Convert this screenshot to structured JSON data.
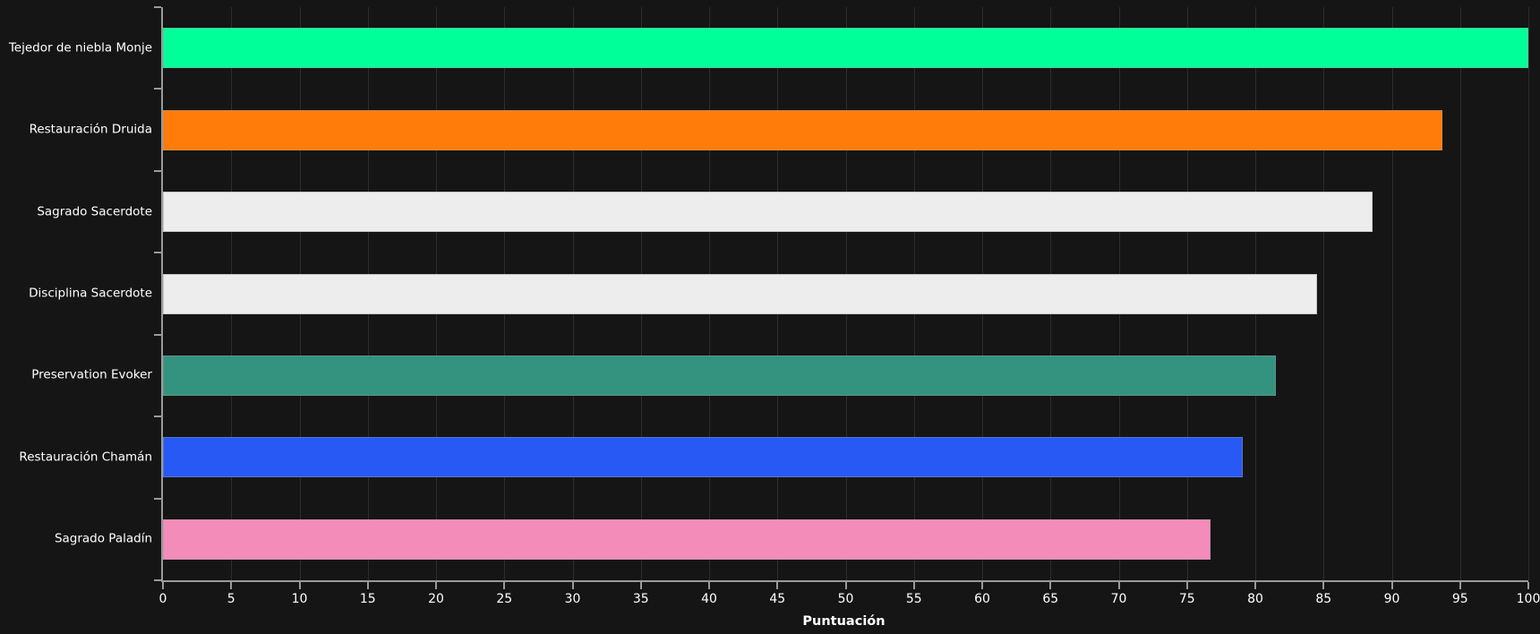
{
  "colors": {
    "background": "#151515",
    "gridline": "#2d2d2d",
    "axis_line": "#9a9a9a",
    "text": "#ffffff"
  },
  "chart_data": {
    "type": "bar",
    "orientation": "horizontal",
    "title": "",
    "xlabel": "Puntuación",
    "ylabel": "",
    "xlim": [
      0,
      100
    ],
    "xticks": [
      0,
      5,
      10,
      15,
      20,
      25,
      30,
      35,
      40,
      45,
      50,
      55,
      60,
      65,
      70,
      75,
      80,
      85,
      90,
      95,
      100
    ],
    "grid": "vertical",
    "legend": "none",
    "categories": [
      "Tejedor de niebla Monje",
      "Restauración Druida",
      "Sagrado Sacerdote",
      "Disciplina Sacerdote",
      "Preservation Evoker",
      "Restauración Chamán",
      "Sagrado Paladín"
    ],
    "values": [
      100,
      93.7,
      88.6,
      84.5,
      81.5,
      79.1,
      76.7
    ],
    "bar_colors": [
      "#00FF98",
      "#FF7C0A",
      "#EDEDED",
      "#EDEDED",
      "#33937F",
      "#2859F5",
      "#F48CBA"
    ]
  }
}
